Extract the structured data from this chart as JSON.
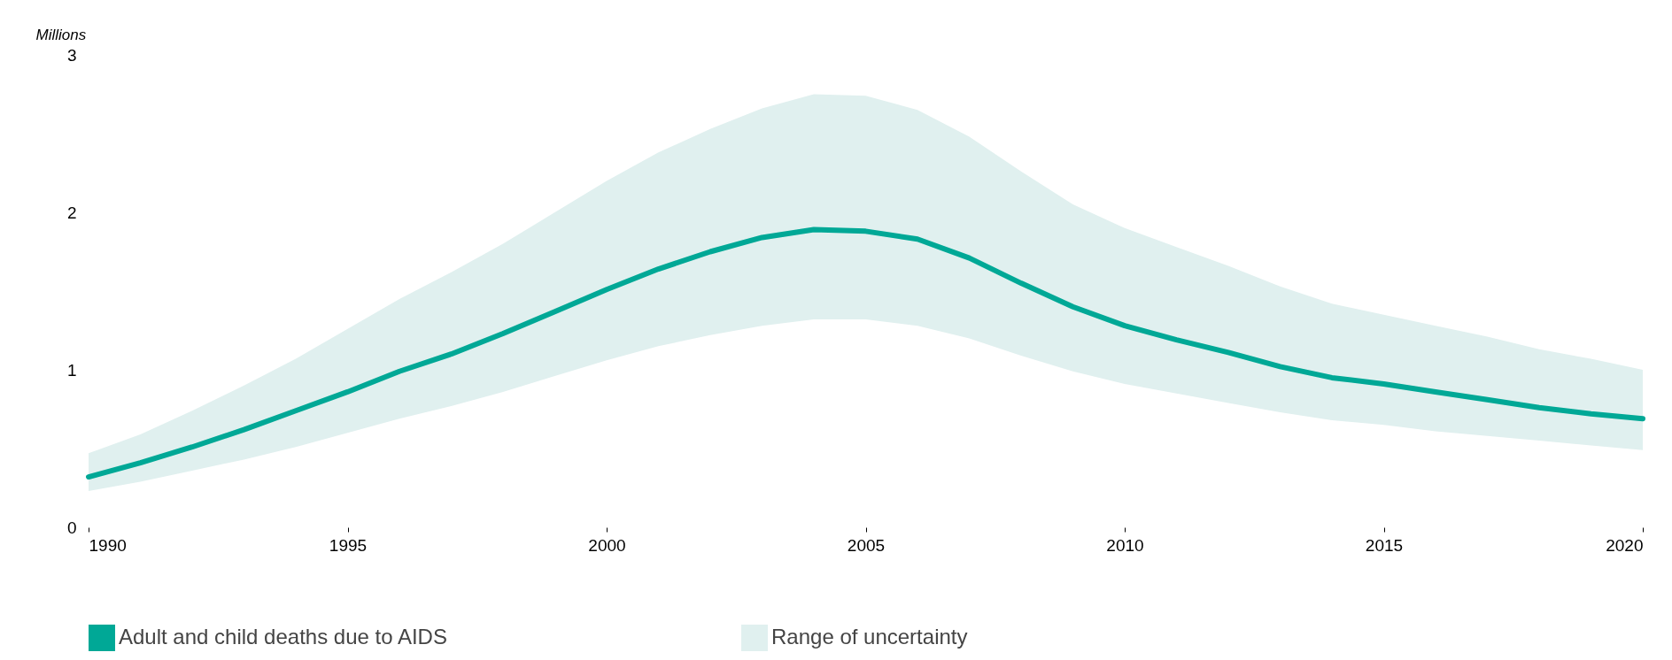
{
  "chart_data": {
    "type": "line",
    "ylabel": "Millions",
    "x": [
      1990,
      1991,
      1992,
      1993,
      1994,
      1995,
      1996,
      1997,
      1998,
      1999,
      2000,
      2001,
      2002,
      2003,
      2004,
      2005,
      2006,
      2007,
      2008,
      2009,
      2010,
      2011,
      2012,
      2013,
      2014,
      2015,
      2016,
      2017,
      2018,
      2019,
      2020
    ],
    "series": [
      {
        "name": "Adult and child deaths due to AIDS",
        "color": "#00a896",
        "values": [
          0.32,
          0.41,
          0.51,
          0.62,
          0.74,
          0.86,
          0.99,
          1.1,
          1.23,
          1.37,
          1.51,
          1.64,
          1.75,
          1.84,
          1.89,
          1.88,
          1.83,
          1.71,
          1.55,
          1.4,
          1.28,
          1.19,
          1.11,
          1.02,
          0.95,
          0.91,
          0.86,
          0.81,
          0.76,
          0.72,
          0.69
        ]
      },
      {
        "name": "Range of uncertainty",
        "type": "area",
        "color": "#e0f0ef",
        "values": [
          null,
          null,
          null,
          null,
          null,
          null,
          null,
          null,
          null,
          null,
          null,
          null,
          null,
          null,
          null,
          null,
          null,
          null,
          null,
          null,
          null,
          null,
          null,
          null,
          null,
          null,
          null,
          null,
          null,
          null,
          null
        ],
        "lower": [
          0.23,
          0.29,
          0.36,
          0.43,
          0.51,
          0.6,
          0.69,
          0.77,
          0.86,
          0.96,
          1.06,
          1.15,
          1.22,
          1.28,
          1.32,
          1.32,
          1.28,
          1.2,
          1.09,
          0.99,
          0.91,
          0.85,
          0.79,
          0.73,
          0.68,
          0.65,
          0.61,
          0.58,
          0.55,
          0.52,
          0.49
        ],
        "upper": [
          0.47,
          0.59,
          0.74,
          0.9,
          1.07,
          1.26,
          1.45,
          1.62,
          1.8,
          2.0,
          2.2,
          2.38,
          2.53,
          2.66,
          2.75,
          2.74,
          2.65,
          2.48,
          2.26,
          2.05,
          1.9,
          1.78,
          1.66,
          1.53,
          1.42,
          1.35,
          1.28,
          1.21,
          1.13,
          1.07,
          1.0
        ]
      }
    ],
    "xlim": [
      1990,
      2020
    ],
    "xticks": [
      1990,
      1995,
      2000,
      2005,
      2010,
      2015,
      2020
    ],
    "ylim": [
      0,
      3
    ],
    "yticks": [
      0,
      1,
      2,
      3
    ],
    "grid": false,
    "legend": "bottom"
  }
}
